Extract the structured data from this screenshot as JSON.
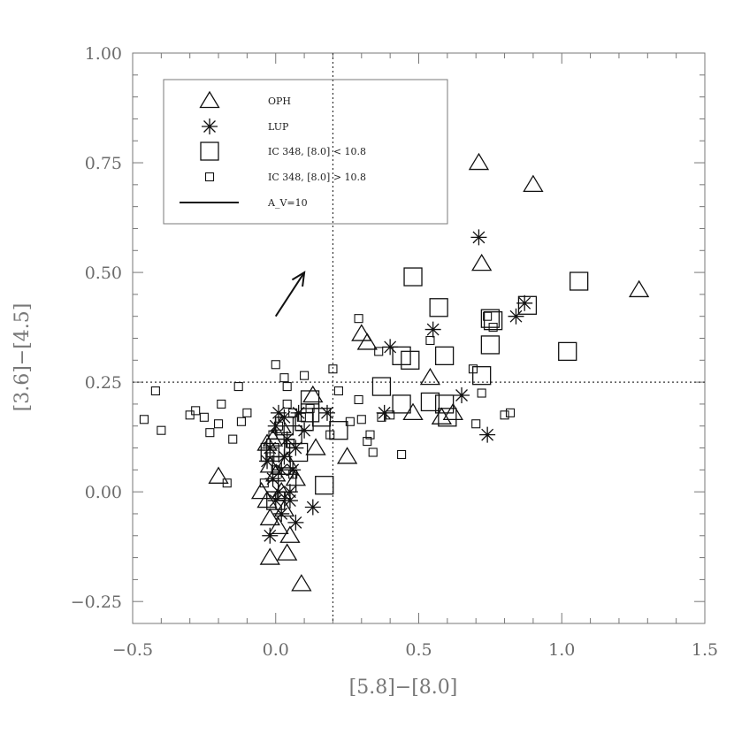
{
  "chart_data": {
    "type": "scatter",
    "xlabel": "[5.8]−[8.0]",
    "ylabel": "[3.6]−[4.5]",
    "xlim": [
      -0.5,
      1.5
    ],
    "ylim": [
      -0.3,
      1.0
    ],
    "x_ticks": [
      -0.5,
      0.0,
      0.5,
      1.0,
      1.5
    ],
    "x_tick_labels": [
      "−0.5",
      "0.0",
      "0.5",
      "1.0",
      "1.5"
    ],
    "y_ticks": [
      -0.25,
      0.0,
      0.25,
      0.5,
      0.75,
      1.0
    ],
    "y_tick_labels": [
      "−0.25",
      "0.00",
      "0.25",
      "0.50",
      "0.75",
      "1.00"
    ],
    "grid": false,
    "legend_position": "top-left",
    "reference_lines": {
      "x": 0.2,
      "y": 0.25
    },
    "reddening_vector": {
      "label": "A_V=10",
      "from": [
        0.0,
        0.4
      ],
      "to": [
        0.1,
        0.5
      ]
    },
    "series": [
      {
        "name": "OPH",
        "marker": "triangle",
        "points": [
          [
            0.71,
            0.75
          ],
          [
            0.9,
            0.7
          ],
          [
            0.72,
            0.52
          ],
          [
            1.27,
            0.46
          ],
          [
            0.3,
            0.36
          ],
          [
            0.32,
            0.34
          ],
          [
            0.54,
            0.26
          ],
          [
            0.48,
            0.18
          ],
          [
            0.58,
            0.17
          ],
          [
            0.62,
            0.18
          ],
          [
            0.13,
            0.22
          ],
          [
            0.14,
            0.1
          ],
          [
            0.25,
            0.08
          ],
          [
            -0.2,
            0.035
          ],
          [
            -0.03,
            0.11
          ],
          [
            -0.02,
            0.06
          ],
          [
            0.0,
            0.04
          ],
          [
            0.02,
            0.0
          ],
          [
            -0.05,
            0.0
          ],
          [
            -0.03,
            -0.02
          ],
          [
            0.03,
            -0.04
          ],
          [
            -0.02,
            -0.06
          ],
          [
            0.01,
            -0.08
          ],
          [
            0.05,
            -0.1
          ],
          [
            -0.02,
            -0.15
          ],
          [
            0.04,
            -0.14
          ],
          [
            0.09,
            -0.21
          ],
          [
            0.07,
            0.03
          ],
          [
            0.04,
            0.07
          ],
          [
            -0.01,
            0.12
          ],
          [
            0.02,
            0.15
          ]
        ]
      },
      {
        "name": "LUP",
        "marker": "asterisk",
        "points": [
          [
            0.71,
            0.58
          ],
          [
            0.87,
            0.43
          ],
          [
            0.84,
            0.4
          ],
          [
            0.4,
            0.33
          ],
          [
            0.55,
            0.37
          ],
          [
            0.65,
            0.22
          ],
          [
            0.38,
            0.18
          ],
          [
            0.74,
            0.13
          ],
          [
            0.18,
            0.18
          ],
          [
            0.13,
            -0.035
          ],
          [
            0.07,
            -0.07
          ],
          [
            -0.02,
            -0.1
          ],
          [
            0.0,
            0.15
          ],
          [
            0.03,
            0.08
          ],
          [
            -0.01,
            0.03
          ],
          [
            0.05,
            0.0
          ],
          [
            0.02,
            -0.05
          ],
          [
            0.04,
            0.12
          ],
          [
            0.01,
            0.18
          ],
          [
            -0.02,
            0.1
          ],
          [
            0.06,
            0.05
          ],
          [
            0.1,
            0.14
          ],
          [
            0.0,
            -0.02
          ],
          [
            0.03,
            0.17
          ],
          [
            0.07,
            0.1
          ],
          [
            0.02,
            0.05
          ],
          [
            -0.03,
            0.07
          ],
          [
            0.05,
            -0.02
          ],
          [
            0.01,
            0.0
          ],
          [
            0.08,
            0.18
          ]
        ]
      },
      {
        "name": "IC 348, [8.0] < 10.8",
        "marker": "square-large",
        "points": [
          [
            0.48,
            0.49
          ],
          [
            1.06,
            0.48
          ],
          [
            0.88,
            0.425
          ],
          [
            0.57,
            0.42
          ],
          [
            0.75,
            0.395
          ],
          [
            0.76,
            0.39
          ],
          [
            0.75,
            0.335
          ],
          [
            1.02,
            0.32
          ],
          [
            0.44,
            0.31
          ],
          [
            0.59,
            0.31
          ],
          [
            0.47,
            0.3
          ],
          [
            0.72,
            0.265
          ],
          [
            0.37,
            0.24
          ],
          [
            0.44,
            0.2
          ],
          [
            0.54,
            0.205
          ],
          [
            0.59,
            0.2
          ],
          [
            0.6,
            0.17
          ],
          [
            0.12,
            0.21
          ],
          [
            0.16,
            0.17
          ],
          [
            0.22,
            0.14
          ],
          [
            0.17,
            0.015
          ],
          [
            0.12,
            0.18
          ],
          [
            0.1,
            0.16
          ],
          [
            0.06,
            0.13
          ],
          [
            0.08,
            0.09
          ],
          [
            0.0,
            0.1
          ],
          [
            0.02,
            0.06
          ],
          [
            -0.02,
            0.09
          ],
          [
            0.04,
            0.02
          ],
          [
            0.0,
            -0.02
          ],
          [
            0.03,
            0.15
          ]
        ]
      },
      {
        "name": "IC 348, [8.0] > 10.8",
        "marker": "square-small",
        "points": [
          [
            0.29,
            0.395
          ],
          [
            0.74,
            0.4
          ],
          [
            0.76,
            0.375
          ],
          [
            0.36,
            0.32
          ],
          [
            0.54,
            0.345
          ],
          [
            0.69,
            0.28
          ],
          [
            0.72,
            0.225
          ],
          [
            0.0,
            0.29
          ],
          [
            0.2,
            0.28
          ],
          [
            0.03,
            0.26
          ],
          [
            0.1,
            0.265
          ],
          [
            0.04,
            0.24
          ],
          [
            -0.13,
            0.24
          ],
          [
            -0.42,
            0.23
          ],
          [
            0.22,
            0.23
          ],
          [
            -0.19,
            0.2
          ],
          [
            -0.1,
            0.18
          ],
          [
            -0.3,
            0.175
          ],
          [
            -0.25,
            0.17
          ],
          [
            -0.28,
            0.185
          ],
          [
            -0.46,
            0.165
          ],
          [
            -0.2,
            0.155
          ],
          [
            -0.4,
            0.14
          ],
          [
            -0.23,
            0.135
          ],
          [
            -0.15,
            0.12
          ],
          [
            -0.12,
            0.16
          ],
          [
            0.09,
            0.17
          ],
          [
            0.19,
            0.13
          ],
          [
            0.26,
            0.16
          ],
          [
            0.29,
            0.21
          ],
          [
            0.3,
            0.165
          ],
          [
            0.33,
            0.13
          ],
          [
            0.32,
            0.115
          ],
          [
            0.37,
            0.17
          ],
          [
            0.4,
            0.175
          ],
          [
            0.44,
            0.085
          ],
          [
            0.34,
            0.09
          ],
          [
            0.7,
            0.155
          ],
          [
            0.82,
            0.18
          ],
          [
            0.8,
            0.175
          ],
          [
            -0.17,
            0.02
          ],
          [
            -0.04,
            0.02
          ],
          [
            -0.02,
            0.08
          ],
          [
            0.06,
            0.04
          ],
          [
            0.04,
            0.2
          ],
          [
            0.06,
            0.18
          ],
          [
            0.12,
            0.19
          ],
          [
            0.01,
            0.15
          ],
          [
            0.05,
            0.11
          ],
          [
            0.0,
            0.05
          ],
          [
            0.02,
            -0.01
          ],
          [
            -0.01,
            0.13
          ]
        ]
      }
    ]
  }
}
